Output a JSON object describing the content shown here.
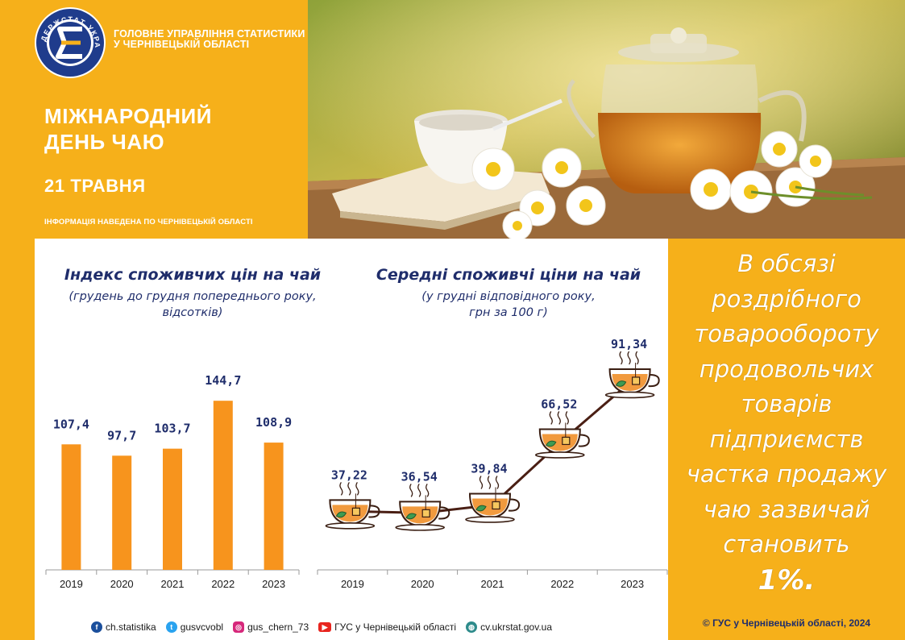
{
  "header": {
    "org_line1": "ГОЛОВНЕ УПРАВЛІННЯ СТАТИСТИКИ",
    "org_line2": "У ЧЕРНІВЕЦЬКІЙ ОБЛАСТІ",
    "title_line1": "МІЖНАРОДНИЙ",
    "title_line2": "ДЕНЬ ЧАЮ",
    "date": "21 ТРАВНЯ",
    "note": "ІНФОРМАЦІЯ НАВЕДЕНА ПО ЧЕРНІВЕЦЬКІЙ ОБЛАСТІ",
    "logo_text": "ДЕРЖСТАТ УКРАЇНИ"
  },
  "chart_data": [
    {
      "type": "bar",
      "title": "Індекс споживчих цін на чай",
      "subtitle_line1": "(грудень до грудня попереднього року,",
      "subtitle_line2": "відсотків)",
      "categories": [
        "2019",
        "2020",
        "2021",
        "2022",
        "2023"
      ],
      "values": [
        107.4,
        97.7,
        103.7,
        144.7,
        108.9
      ],
      "value_labels": [
        "107,4",
        "97,7",
        "103,7",
        "144,7",
        "108,9"
      ],
      "ylim": [
        0,
        160
      ],
      "color": "#F7941D",
      "grid": false
    },
    {
      "type": "line",
      "title": "Середні споживчі ціни на чай",
      "subtitle_line1": "(у грудні відповідного року,",
      "subtitle_line2": "грн за 100 г)",
      "categories": [
        "2019",
        "2020",
        "2021",
        "2022",
        "2023"
      ],
      "values": [
        37.22,
        36.54,
        39.84,
        66.52,
        91.34
      ],
      "value_labels": [
        "37,22",
        "36,54",
        "39,84",
        "66,52",
        "91,34"
      ],
      "ylim": [
        30,
        95
      ],
      "marker": "tea-cup-icon",
      "line_color": "#4A1F14",
      "grid": false
    }
  ],
  "footer": {
    "facebook": "ch.statistika",
    "twitter": "gusvcvobl",
    "instagram": "gus_chern_73",
    "youtube": "ГУС у Чернівецькій області",
    "website": "cv.ukrstat.gov.ua"
  },
  "fact": {
    "lines": [
      "В обсязі",
      "роздрібного",
      "товарообороту",
      "продовольчих",
      "товарів",
      "підприємств",
      "частка продажу",
      "чаю зазвичай",
      "становить"
    ],
    "percent": "1%."
  },
  "copyright": "© ГУС у Чернівецькій області, 2024",
  "colors": {
    "background": "#F6B01A",
    "title_navy": "#1F2D6B",
    "bar": "#F7941D",
    "line": "#4A1F14"
  }
}
